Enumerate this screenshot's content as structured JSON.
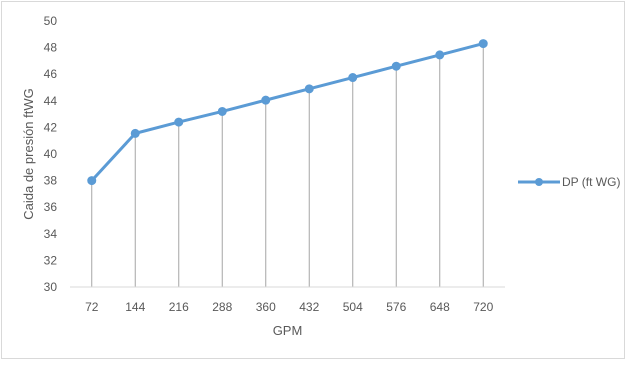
{
  "chart_data": {
    "type": "line",
    "title": "",
    "xlabel": "GPM",
    "ylabel": "Caida de presión ftWG",
    "categories": [
      "72",
      "144",
      "216",
      "288",
      "360",
      "432",
      "504",
      "576",
      "648",
      "720"
    ],
    "ylim": [
      30,
      50
    ],
    "ytick_step": 2,
    "grid": false,
    "drop_lines": true,
    "legend_position": "right",
    "series": [
      {
        "name": "DP (ft WG)",
        "color": "#5B9BD5",
        "values": [
          38.0,
          41.55,
          42.4,
          43.2,
          44.05,
          44.9,
          45.75,
          46.6,
          47.45,
          48.3
        ]
      }
    ]
  }
}
